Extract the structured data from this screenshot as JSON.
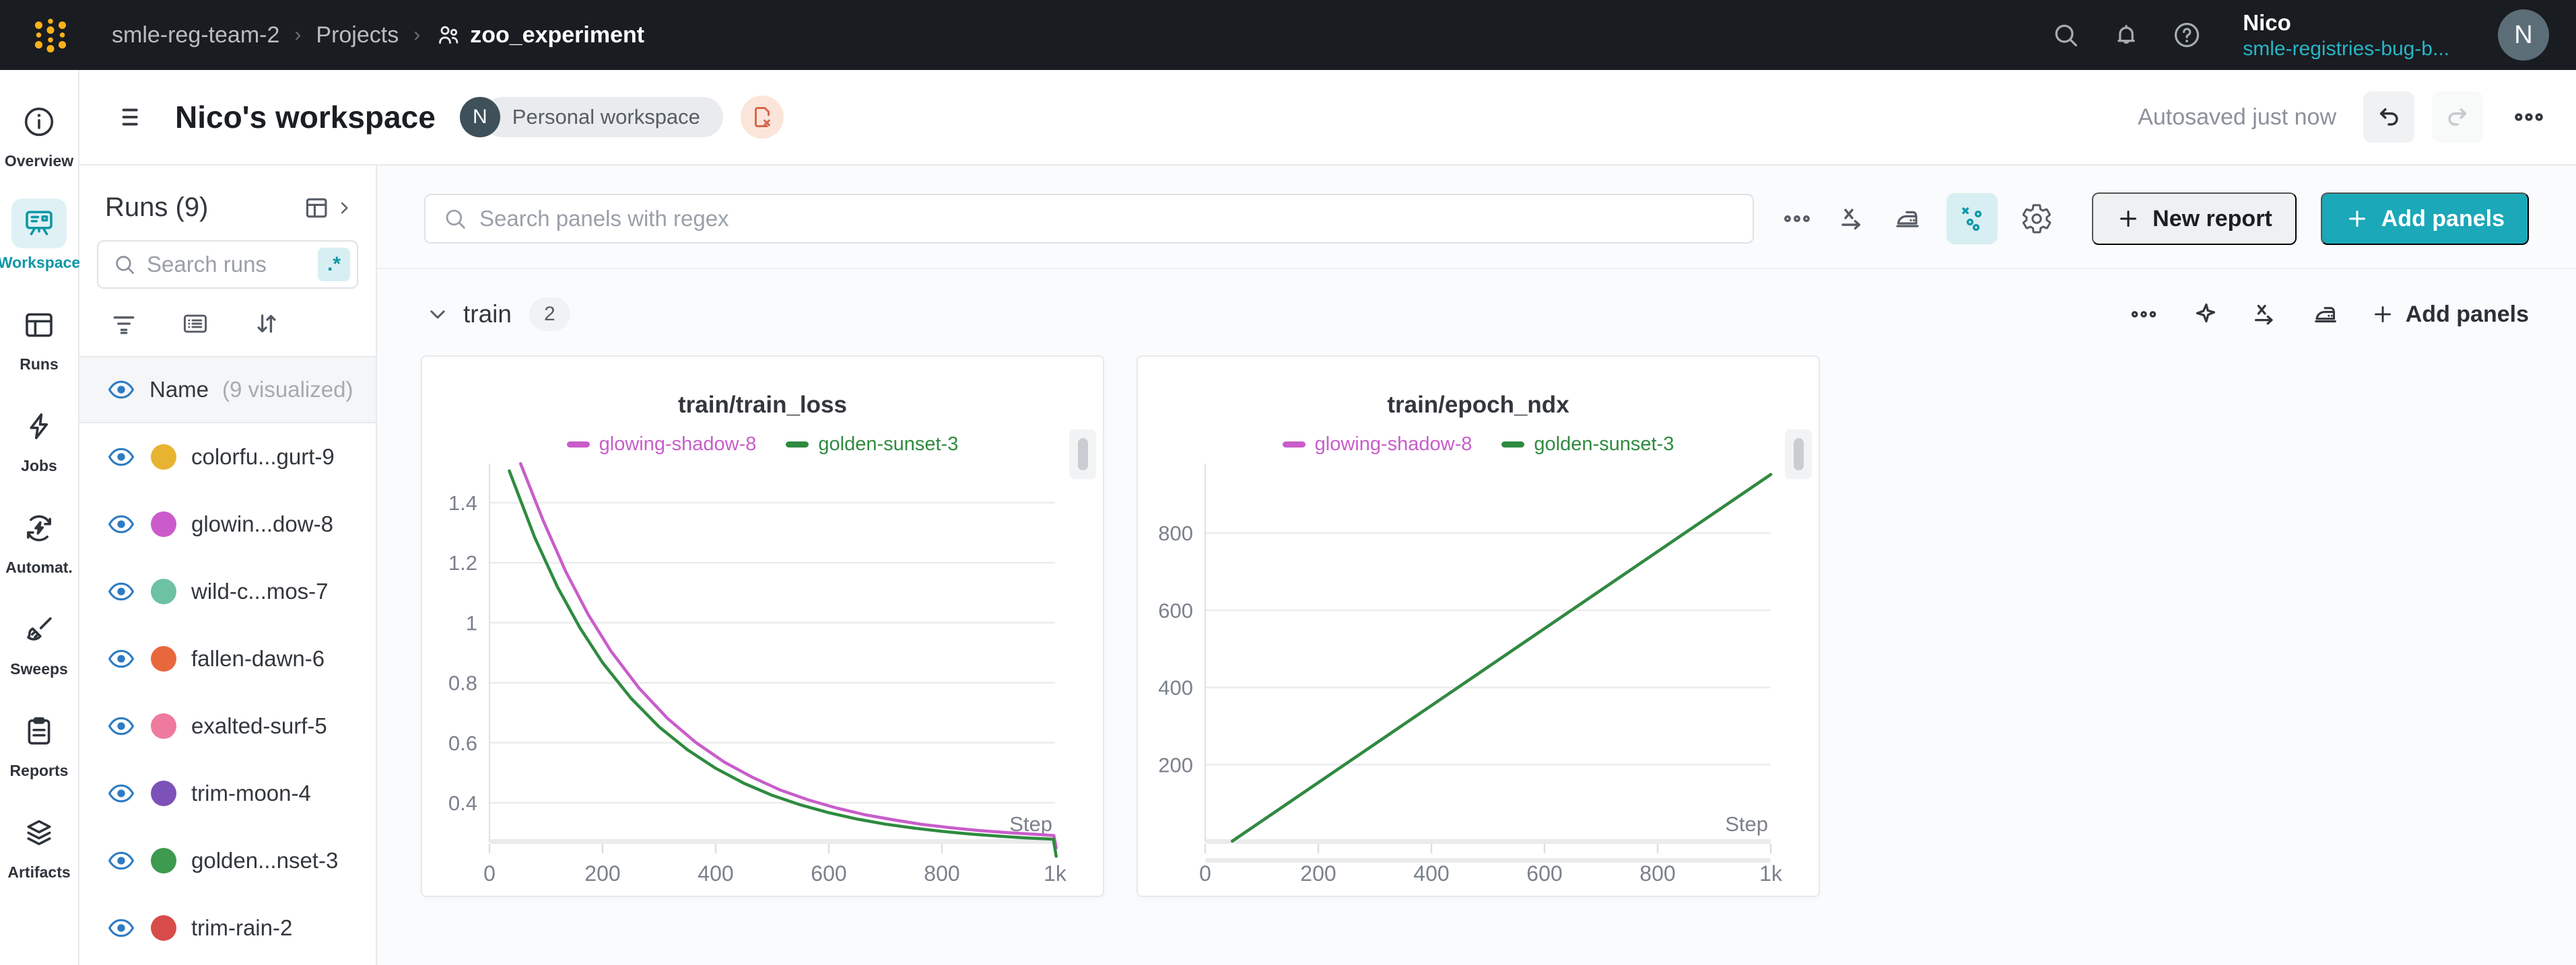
{
  "topnav": {
    "breadcrumb": {
      "team": "smle-reg-team-2",
      "section": "Projects",
      "project": "zoo_experiment"
    },
    "user": {
      "name": "Nico",
      "handle": "smle-registries-bug-b...",
      "avatar_initial": "N"
    }
  },
  "workspace_bar": {
    "title": "Nico's workspace",
    "owner_initial": "N",
    "badge": "Personal workspace",
    "autosave_status": "Autosaved just now"
  },
  "rail": {
    "items": [
      {
        "label": "Overview",
        "active": false
      },
      {
        "label": "Workspace",
        "active": true
      },
      {
        "label": "Runs",
        "active": false
      },
      {
        "label": "Jobs",
        "active": false
      },
      {
        "label": "Automat.",
        "active": false
      },
      {
        "label": "Sweeps",
        "active": false
      },
      {
        "label": "Reports",
        "active": false
      },
      {
        "label": "Artifacts",
        "active": false
      }
    ]
  },
  "runs_sidebar": {
    "title": "Runs (9)",
    "search_placeholder": "Search runs",
    "regex_chip": ".*",
    "name_header": "Name",
    "visualized_note": "(9 visualized)",
    "runs": [
      {
        "name": "colorfu...gurt-9",
        "color": "#e8b331"
      },
      {
        "name": "glowin...dow-8",
        "color": "#cb5bcb"
      },
      {
        "name": "wild-c...mos-7",
        "color": "#6dc2a3"
      },
      {
        "name": "fallen-dawn-6",
        "color": "#e8673d"
      },
      {
        "name": "exalted-surf-5",
        "color": "#ee7a9e"
      },
      {
        "name": "trim-moon-4",
        "color": "#7d52b8"
      },
      {
        "name": "golden...nset-3",
        "color": "#3d9a4e"
      },
      {
        "name": "trim-rain-2",
        "color": "#d84b4b"
      }
    ]
  },
  "main_toolbar": {
    "search_placeholder": "Search panels with regex",
    "new_report_label": "New report",
    "add_panels_label": "Add panels"
  },
  "section": {
    "name": "train",
    "count": "2",
    "add_panels_label": "Add panels"
  },
  "colors": {
    "accent_teal": "#1ba8b8",
    "active_teal": "#0e97a7",
    "eye_blue": "#2e7cc3"
  },
  "chart_data": [
    {
      "type": "line",
      "title": "train/train_loss",
      "xlabel": "Step",
      "x_range": [
        0,
        1000
      ],
      "y_range": [
        0.27,
        1.53
      ],
      "x_ticks": [
        {
          "v": 0,
          "label": "0"
        },
        {
          "v": 200,
          "label": "200"
        },
        {
          "v": 400,
          "label": "400"
        },
        {
          "v": 600,
          "label": "600"
        },
        {
          "v": 800,
          "label": "800"
        },
        {
          "v": 1000,
          "label": "1k"
        }
      ],
      "y_ticks": [
        {
          "v": 0.4,
          "label": "0.4"
        },
        {
          "v": 0.6,
          "label": "0.6"
        },
        {
          "v": 0.8,
          "label": "0.8"
        },
        {
          "v": 1.0,
          "label": "1"
        },
        {
          "v": 1.2,
          "label": "1.2"
        },
        {
          "v": 1.4,
          "label": "1.4"
        }
      ],
      "has_scrollbar": false,
      "series": [
        {
          "name": "glowing-shadow-8",
          "color": "#c85dca",
          "points": [
            [
              55,
              1.53
            ],
            [
              95,
              1.34
            ],
            [
              135,
              1.17
            ],
            [
              175,
              1.026
            ],
            [
              215,
              0.905
            ],
            [
              265,
              0.781
            ],
            [
              315,
              0.681
            ],
            [
              365,
              0.601
            ],
            [
              415,
              0.536
            ],
            [
              465,
              0.485
            ],
            [
              515,
              0.442
            ],
            [
              565,
              0.409
            ],
            [
              615,
              0.382
            ],
            [
              665,
              0.36
            ],
            [
              715,
              0.343
            ],
            [
              765,
              0.328
            ],
            [
              815,
              0.317
            ],
            [
              865,
              0.308
            ],
            [
              915,
              0.301
            ],
            [
              965,
              0.295
            ],
            [
              998,
              0.291
            ],
            [
              1002,
              0.25
            ]
          ]
        },
        {
          "name": "golden-sunset-3",
          "color": "#2e8b3f",
          "points": [
            [
              35,
              1.506
            ],
            [
              80,
              1.284
            ],
            [
              120,
              1.12
            ],
            [
              160,
              0.983
            ],
            [
              200,
              0.867
            ],
            [
              250,
              0.749
            ],
            [
              300,
              0.653
            ],
            [
              350,
              0.577
            ],
            [
              400,
              0.515
            ],
            [
              450,
              0.465
            ],
            [
              500,
              0.425
            ],
            [
              550,
              0.393
            ],
            [
              600,
              0.367
            ],
            [
              650,
              0.346
            ],
            [
              700,
              0.329
            ],
            [
              750,
              0.316
            ],
            [
              800,
              0.305
            ],
            [
              850,
              0.296
            ],
            [
              900,
              0.289
            ],
            [
              950,
              0.283
            ],
            [
              997,
              0.279
            ],
            [
              1002,
              0.222
            ]
          ]
        }
      ]
    },
    {
      "type": "line",
      "title": "train/epoch_ndx",
      "xlabel": "Step",
      "x_range": [
        0,
        1000
      ],
      "y_range": [
        0,
        980
      ],
      "x_ticks": [
        {
          "v": 0,
          "label": "0"
        },
        {
          "v": 200,
          "label": "200"
        },
        {
          "v": 400,
          "label": "400"
        },
        {
          "v": 600,
          "label": "600"
        },
        {
          "v": 800,
          "label": "800"
        },
        {
          "v": 1000,
          "label": "1k"
        }
      ],
      "y_ticks": [
        {
          "v": 200,
          "label": "200"
        },
        {
          "v": 400,
          "label": "400"
        },
        {
          "v": 600,
          "label": "600"
        },
        {
          "v": 800,
          "label": "800"
        }
      ],
      "has_scrollbar": true,
      "series": [
        {
          "name": "glowing-shadow-8",
          "color": "#c85dca",
          "points": [
            [
              48,
              2
            ],
            [
              1000,
              952
            ]
          ]
        },
        {
          "name": "golden-sunset-3",
          "color": "#2e8b3f",
          "points": [
            [
              48,
              2
            ],
            [
              1000,
              952
            ]
          ]
        }
      ]
    }
  ]
}
